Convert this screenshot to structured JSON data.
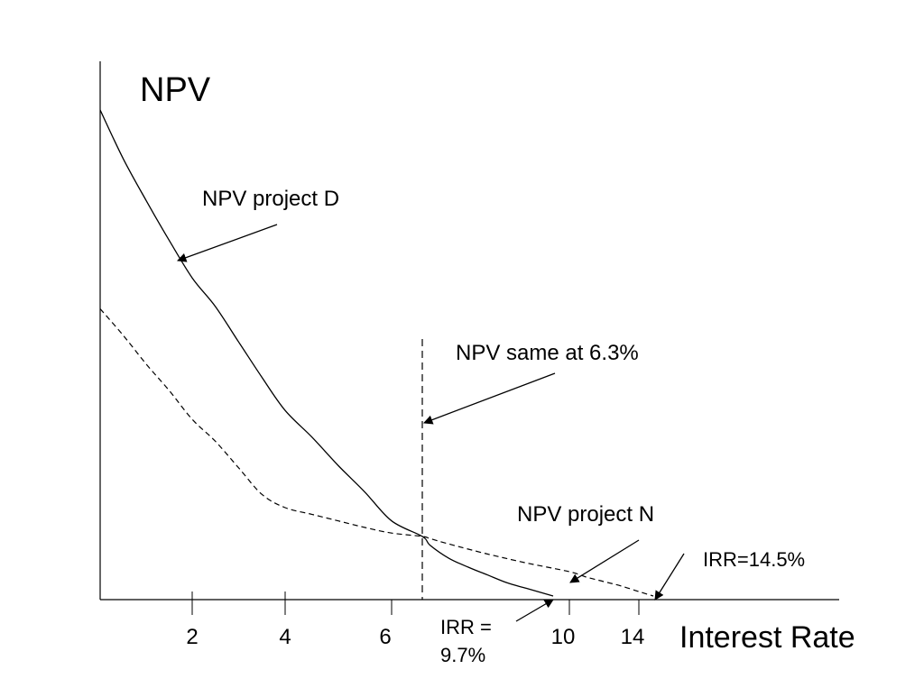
{
  "chart_data": {
    "type": "line",
    "title": "",
    "ylabel": "NPV",
    "xlabel": "Interest Rate",
    "x_ticks": [
      "2",
      "4",
      "6",
      "10",
      "14"
    ],
    "series": [
      {
        "name": "NPV project D",
        "style": "solid",
        "color": "#000000",
        "points": [
          [
            0,
            2200
          ],
          [
            0.5,
            1980
          ],
          [
            1,
            1790
          ],
          [
            1.5,
            1610
          ],
          [
            2,
            1440
          ],
          [
            2.5,
            1310
          ],
          [
            3,
            1150
          ],
          [
            3.5,
            990
          ],
          [
            4,
            840
          ],
          [
            4.5,
            720
          ],
          [
            5,
            590
          ],
          [
            5.5,
            470
          ],
          [
            6,
            340
          ],
          [
            6.3,
            270
          ],
          [
            6.5,
            230
          ],
          [
            7,
            170
          ],
          [
            7.5,
            130
          ],
          [
            8,
            95
          ],
          [
            8.5,
            60
          ],
          [
            9,
            35
          ],
          [
            9.7,
            0
          ]
        ]
      },
      {
        "name": "NPV project N",
        "style": "dashed",
        "color": "#000000",
        "points": [
          [
            0,
            1300
          ],
          [
            0.5,
            1180
          ],
          [
            1,
            1050
          ],
          [
            1.5,
            930
          ],
          [
            2,
            800
          ],
          [
            2.5,
            700
          ],
          [
            3,
            580
          ],
          [
            3.5,
            460
          ],
          [
            4,
            400
          ],
          [
            4.5,
            370
          ],
          [
            5,
            340
          ],
          [
            5.5,
            310
          ],
          [
            6,
            285
          ],
          [
            6.3,
            270
          ],
          [
            6.5,
            260
          ],
          [
            7,
            235
          ],
          [
            8,
            190
          ],
          [
            9,
            150
          ],
          [
            10,
            110
          ],
          [
            11,
            85
          ],
          [
            12,
            65
          ],
          [
            13,
            45
          ],
          [
            14,
            20
          ],
          [
            14.5,
            0
          ]
        ]
      }
    ],
    "crossover": {
      "x": 6.3,
      "label": "NPV same at 6.3%"
    },
    "irr": [
      {
        "series": "NPV project D",
        "x": 9.7,
        "label_line1": "IRR =",
        "label_line2": "9.7%"
      },
      {
        "series": "NPV project N",
        "x": 14.5,
        "label": "IRR=14.5%"
      }
    ],
    "grid": false,
    "legend": "none"
  }
}
